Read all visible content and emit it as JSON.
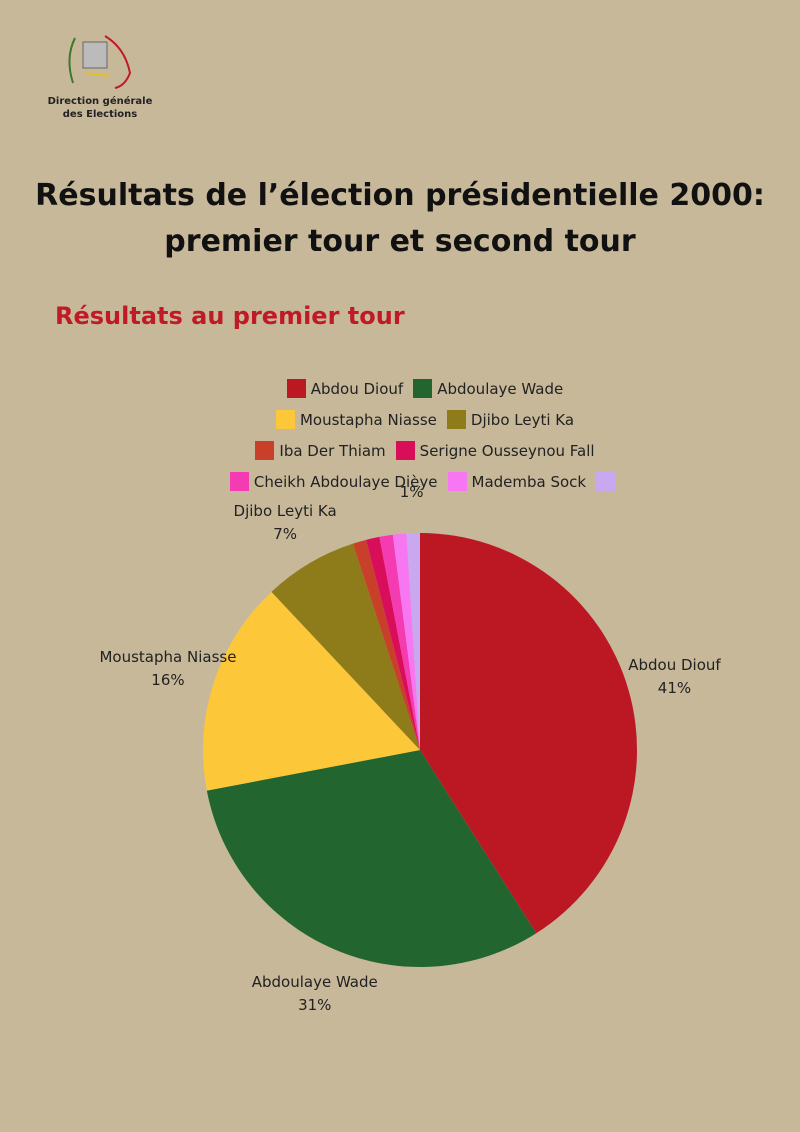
{
  "header": {
    "logo_line1": "Direction générale",
    "logo_line2": "des Elections"
  },
  "title_line1": "Résultats de l’élection présidentielle 2000:",
  "title_line2": "premier tour et second tour",
  "section_title": "Résultats au premier tour",
  "chart_data": {
    "type": "pie",
    "categories": [
      "Abdou Diouf",
      "Abdoulaye Wade",
      "Moustapha Niasse",
      "Djibo Leyti Ka",
      "Iba Der Thiam",
      "Serigne Ousseynou Fall",
      "Cheikh Abdoulaye Dièye",
      "Mademba Sock",
      null
    ],
    "values": [
      41,
      31,
      16,
      7,
      1,
      1,
      1,
      1,
      1
    ],
    "value_labels": [
      "41%",
      "31%",
      "16%",
      "7%",
      null,
      null,
      null,
      null,
      "1%"
    ],
    "colors": [
      "#bb1824",
      "#23652e",
      "#fdc73a",
      "#8e7c1a",
      "#c9402a",
      "#d90e5a",
      "#f43bb2",
      "#f776f2",
      "#c9a8ef"
    ]
  }
}
